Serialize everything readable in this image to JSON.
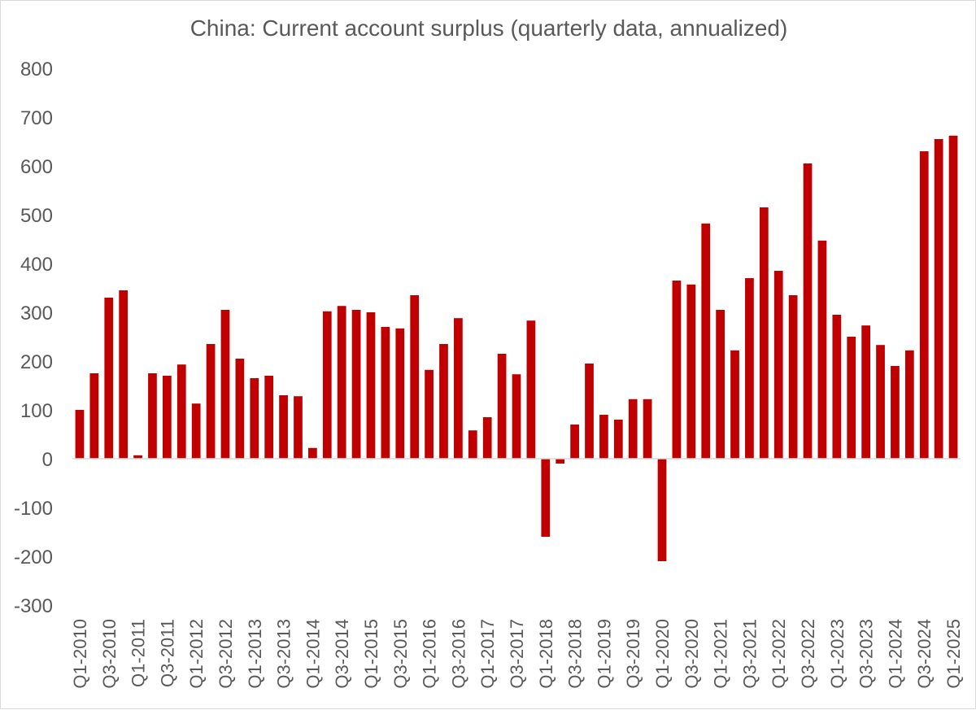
{
  "chart_data": {
    "type": "bar",
    "title": "China: Current account surplus (quarterly data, annualized)",
    "xlabel": "",
    "ylabel": "",
    "ylim": [
      -300,
      800
    ],
    "yticks": [
      800,
      700,
      600,
      500,
      400,
      300,
      200,
      100,
      0,
      -100,
      -200,
      -300
    ],
    "grid": false,
    "bar_color": "#C00000",
    "categories": [
      "Q1-2010",
      "Q2-2010",
      "Q3-2010",
      "Q4-2010",
      "Q1-2011",
      "Q2-2011",
      "Q3-2011",
      "Q4-2011",
      "Q1-2012",
      "Q2-2012",
      "Q3-2012",
      "Q4-2012",
      "Q1-2013",
      "Q2-2013",
      "Q3-2013",
      "Q4-2013",
      "Q1-2014",
      "Q2-2014",
      "Q3-2014",
      "Q4-2014",
      "Q1-2015",
      "Q2-2015",
      "Q3-2015",
      "Q4-2015",
      "Q1-2016",
      "Q2-2016",
      "Q3-2016",
      "Q4-2016",
      "Q1-2017",
      "Q2-2017",
      "Q3-2017",
      "Q4-2017",
      "Q1-2018",
      "Q2-2018",
      "Q3-2018",
      "Q4-2018",
      "Q1-2019",
      "Q2-2019",
      "Q3-2019",
      "Q4-2019",
      "Q1-2020",
      "Q2-2020",
      "Q3-2020",
      "Q4-2020",
      "Q1-2021",
      "Q2-2021",
      "Q3-2021",
      "Q4-2021",
      "Q1-2022",
      "Q2-2022",
      "Q3-2022",
      "Q4-2022",
      "Q1-2023",
      "Q2-2023",
      "Q3-2023",
      "Q4-2023",
      "Q1-2024",
      "Q2-2024",
      "Q3-2024",
      "Q4-2024",
      "Q1-2025"
    ],
    "visible_tick_labels": [
      "Q1-2010",
      "Q3-2010",
      "Q1-2011",
      "Q3-2011",
      "Q1-2012",
      "Q3-2012",
      "Q1-2013",
      "Q3-2013",
      "Q1-2014",
      "Q3-2014",
      "Q1-2015",
      "Q3-2015",
      "Q1-2016",
      "Q3-2016",
      "Q1-2017",
      "Q3-2017",
      "Q1-2018",
      "Q3-2018",
      "Q1-2019",
      "Q3-2019",
      "Q1-2020",
      "Q3-2020",
      "Q1-2021",
      "Q3-2021",
      "Q1-2022",
      "Q3-2022",
      "Q1-2023",
      "Q3-2023",
      "Q1-2024",
      "Q3-2024",
      "Q1-2025"
    ],
    "values": [
      100,
      175,
      330,
      345,
      7,
      175,
      170,
      193,
      113,
      235,
      305,
      205,
      165,
      170,
      130,
      128,
      22,
      302,
      313,
      305,
      300,
      270,
      267,
      335,
      182,
      235,
      288,
      58,
      85,
      215,
      173,
      283,
      -160,
      -10,
      70,
      195,
      90,
      80,
      122,
      122,
      -210,
      365,
      357,
      482,
      305,
      222,
      370,
      515,
      385,
      335,
      605,
      447,
      295,
      250,
      273,
      233,
      190,
      222,
      630,
      655,
      662
    ]
  }
}
